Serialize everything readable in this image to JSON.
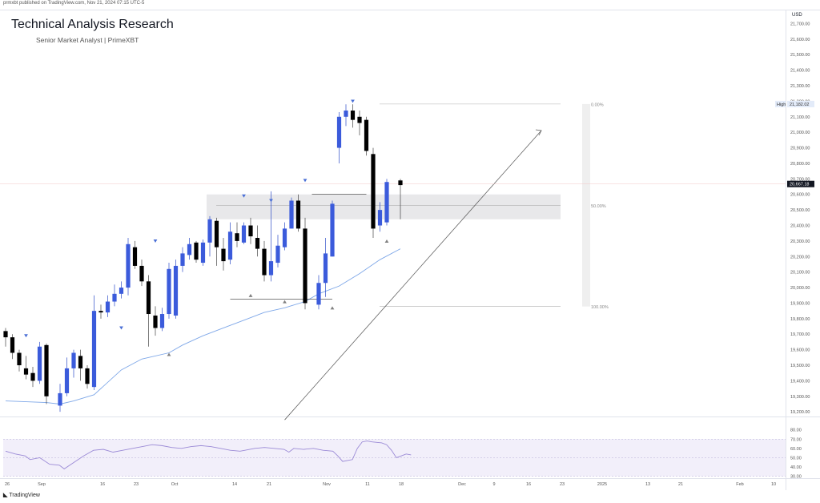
{
  "header": {
    "publish_note": "prmxbt published on TradingView.com, Nov 21, 2024 07:15 UTC-5",
    "title": "Technical Analysis Research",
    "subtitle": "Senior Market Analyst | PrimeXBT"
  },
  "footer": {
    "logo_glyph": "◣",
    "brand": "TradingView"
  },
  "chart_data": {
    "type": "candlestick",
    "currency": "USD",
    "y_range": [
      19170,
      21790
    ],
    "price_ticks": [
      "21,700.00",
      "21,600.00",
      "21,500.00",
      "21,400.00",
      "21,300.00",
      "21,200.00",
      "21,100.00",
      "21,000.00",
      "20,900.00",
      "20,800.00",
      "20,700.00",
      "20,600.00",
      "20,500.00",
      "20,400.00",
      "20,300.00",
      "20,200.00",
      "20,100.00",
      "20,000.00",
      "19,900.00",
      "19,800.00",
      "19,700.00",
      "19,600.00",
      "19,500.00",
      "19,400.00",
      "19,300.00",
      "19,200.00"
    ],
    "high_label": {
      "text": "High",
      "value": "21,182.02"
    },
    "last_price": "20,667.18",
    "x_ticks": [
      "26",
      "Sep",
      "16",
      "23",
      "Oct",
      "14",
      "21",
      "Nov",
      "11",
      "18",
      "Dec",
      "9",
      "16",
      "23",
      "2025",
      "13",
      "21",
      "Feb",
      "10"
    ],
    "fib_levels": [
      {
        "label": "0.00%",
        "price": 21182
      },
      {
        "label": "50.00%",
        "price": 20530
      },
      {
        "label": "100.00%",
        "price": 19878
      }
    ],
    "zone": {
      "from": 20440,
      "to": 20600,
      "color": "#e8e8ea"
    },
    "trendline": {
      "from": [
        41,
        19200
      ],
      "to": [
        107,
        21110
      ]
    },
    "colors": {
      "up": "#3b5bdb",
      "down": "#000000",
      "ma": "#7ea7e8",
      "rsi": "#9b8ad6",
      "marker": "#4a6fd6",
      "grey_marker": "#808080"
    },
    "candles": [
      [
        0,
        19720,
        19680,
        19740,
        19620
      ],
      [
        1,
        19680,
        19580,
        19700,
        19540
      ],
      [
        2,
        19580,
        19500,
        19600,
        19460
      ],
      [
        3,
        19480,
        19440,
        19560,
        19410
      ],
      [
        4,
        19450,
        19400,
        19490,
        19360
      ],
      [
        5,
        19400,
        19620,
        19650,
        19380
      ],
      [
        6,
        19630,
        19300,
        19640,
        19250
      ],
      [
        8,
        19240,
        19320,
        19380,
        19200
      ],
      [
        9,
        19320,
        19480,
        19550,
        19300
      ],
      [
        10,
        19480,
        19580,
        19600,
        19420
      ],
      [
        11,
        19560,
        19480,
        19600,
        19400
      ],
      [
        12,
        19480,
        19380,
        19500,
        19350
      ],
      [
        13,
        19360,
        19850,
        19950,
        19340
      ],
      [
        14,
        19850,
        19840,
        19890,
        19800
      ],
      [
        15,
        19840,
        19910,
        19950,
        19810
      ],
      [
        16,
        19910,
        19960,
        20020,
        19880
      ],
      [
        17,
        19960,
        20000,
        20040,
        19930
      ],
      [
        18,
        20000,
        20280,
        20320,
        19950
      ],
      [
        19,
        20260,
        20140,
        20300,
        20120
      ],
      [
        20,
        20140,
        20040,
        20180,
        20010
      ],
      [
        21,
        20040,
        19830,
        20080,
        19620
      ],
      [
        22,
        19820,
        19740,
        19880,
        19690
      ],
      [
        23,
        19740,
        19830,
        19870,
        19720
      ],
      [
        24,
        19830,
        20120,
        20160,
        19800
      ],
      [
        25,
        19820,
        20140,
        20180,
        19800
      ],
      [
        26,
        20140,
        20220,
        20260,
        20100
      ],
      [
        27,
        20210,
        20280,
        20320,
        20180
      ],
      [
        28,
        20290,
        20180,
        20300,
        20160
      ],
      [
        29,
        20160,
        20290,
        20310,
        20140
      ],
      [
        30,
        20290,
        20440,
        20460,
        20200
      ],
      [
        31,
        20430,
        20260,
        20450,
        20140
      ],
      [
        32,
        20250,
        20170,
        20320,
        20110
      ],
      [
        33,
        20180,
        20360,
        20420,
        20150
      ],
      [
        34,
        20350,
        20300,
        20420,
        20260
      ],
      [
        35,
        20290,
        20400,
        20420,
        20280
      ],
      [
        36,
        20400,
        20330,
        20450,
        20280
      ],
      [
        37,
        20320,
        20250,
        20400,
        20200
      ],
      [
        38,
        20250,
        20080,
        20300,
        20040
      ],
      [
        39,
        20080,
        20170,
        20620,
        20040
      ],
      [
        40,
        20160,
        20270,
        20340,
        20130
      ],
      [
        41,
        20260,
        20380,
        20420,
        20240
      ],
      [
        42,
        20380,
        20560,
        20580,
        20380
      ],
      [
        43,
        20560,
        20380,
        20600,
        20360
      ],
      [
        44,
        20380,
        19900,
        20450,
        19860
      ],
      [
        46,
        19890,
        20030,
        20080,
        19860
      ],
      [
        47,
        20030,
        20220,
        20320,
        19940
      ],
      [
        48,
        20200,
        20540,
        20560,
        20200
      ],
      [
        49,
        20900,
        21100,
        21130,
        20800
      ],
      [
        50,
        21100,
        21140,
        21180,
        21040
      ],
      [
        51,
        21140,
        21080,
        21180,
        21030
      ],
      [
        52,
        21100,
        21060,
        21140,
        20980
      ],
      [
        53,
        21080,
        20880,
        21100,
        20850
      ],
      [
        54,
        20860,
        20380,
        20900,
        20320
      ],
      [
        55,
        20400,
        20500,
        20550,
        20360
      ],
      [
        56,
        20420,
        20680,
        20700,
        20400
      ],
      [
        58,
        20690,
        20660,
        20700,
        20440
      ]
    ],
    "ma": [
      [
        0,
        19270
      ],
      [
        6,
        19260
      ],
      [
        8,
        19250
      ],
      [
        10,
        19270
      ],
      [
        13,
        19310
      ],
      [
        17,
        19470
      ],
      [
        20,
        19540
      ],
      [
        24,
        19580
      ],
      [
        26,
        19630
      ],
      [
        29,
        19690
      ],
      [
        32,
        19740
      ],
      [
        35,
        19790
      ],
      [
        38,
        19840
      ],
      [
        41,
        19870
      ],
      [
        44,
        19910
      ],
      [
        46,
        19960
      ],
      [
        49,
        20010
      ],
      [
        52,
        20090
      ],
      [
        55,
        20180
      ],
      [
        58,
        20250
      ]
    ],
    "fractal_down_markers": [
      [
        3,
        19700
      ],
      [
        17,
        19750
      ],
      [
        22,
        20310
      ],
      [
        35,
        20600
      ],
      [
        39,
        20570
      ],
      [
        44,
        20700
      ],
      [
        51,
        21210
      ]
    ],
    "fractal_up_markers": [
      [
        24,
        19580
      ],
      [
        36,
        19960
      ],
      [
        41,
        19920
      ],
      [
        48,
        19880
      ],
      [
        56,
        20310
      ]
    ],
    "swing_low_line": [
      [
        33,
        19925
      ],
      [
        48,
        19925
      ]
    ],
    "swing_high_line": [
      [
        45,
        20600
      ],
      [
        53,
        20600
      ]
    ],
    "rsi": {
      "ticks": [
        "80.00",
        "70.00",
        "60.00",
        "50.00",
        "40.00",
        "30.00"
      ],
      "range": [
        28,
        84
      ],
      "band": [
        30,
        70
      ],
      "values": [
        [
          0,
          57
        ],
        [
          2,
          54
        ],
        [
          4,
          52
        ],
        [
          5,
          48
        ],
        [
          7,
          50
        ],
        [
          9,
          43
        ],
        [
          11,
          42
        ],
        [
          12,
          38
        ],
        [
          14,
          45
        ],
        [
          16,
          52
        ],
        [
          18,
          58
        ],
        [
          20,
          59
        ],
        [
          22,
          56
        ],
        [
          24,
          58
        ],
        [
          26,
          60
        ],
        [
          28,
          62
        ],
        [
          30,
          64
        ],
        [
          32,
          63
        ],
        [
          34,
          61
        ],
        [
          36,
          60
        ],
        [
          38,
          62
        ],
        [
          40,
          63
        ],
        [
          42,
          62
        ],
        [
          44,
          60
        ],
        [
          46,
          58
        ],
        [
          48,
          57
        ],
        [
          49,
          58
        ],
        [
          51,
          60
        ],
        [
          53,
          61
        ],
        [
          55,
          60
        ],
        [
          57,
          59
        ],
        [
          58,
          56
        ],
        [
          59,
          60
        ],
        [
          61,
          59
        ],
        [
          63,
          60
        ],
        [
          65,
          58
        ],
        [
          67,
          57
        ],
        [
          68,
          52
        ],
        [
          69,
          46
        ],
        [
          71,
          48
        ],
        [
          72,
          60
        ],
        [
          73,
          67
        ],
        [
          74,
          68
        ],
        [
          75,
          67
        ],
        [
          77,
          66
        ],
        [
          78,
          64
        ],
        [
          79,
          58
        ],
        [
          80,
          50
        ],
        [
          81,
          52
        ],
        [
          82,
          54
        ],
        [
          83,
          53
        ]
      ]
    }
  }
}
